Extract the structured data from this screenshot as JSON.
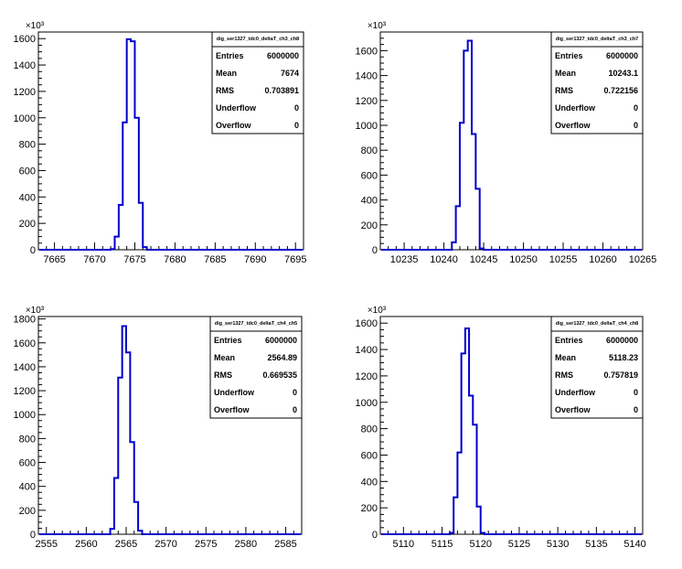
{
  "chart_data": [
    {
      "type": "histogram",
      "stats_title": "dig_ser1327_tdc0_deltaT_ch3_ch8",
      "y_multiplier": "×10³",
      "xlim": [
        7663,
        7696
      ],
      "ylim": [
        0,
        1650
      ],
      "x_ticks": [
        7665,
        7670,
        7675,
        7680,
        7685,
        7690,
        7695
      ],
      "y_ticks": [
        0,
        200,
        400,
        600,
        800,
        1000,
        1200,
        1400,
        1600
      ],
      "bin_width": 0.5,
      "bins": [
        {
          "x": 7672.0,
          "y": 5
        },
        {
          "x": 7672.5,
          "y": 100
        },
        {
          "x": 7673.0,
          "y": 340
        },
        {
          "x": 7673.5,
          "y": 965
        },
        {
          "x": 7674.0,
          "y": 1595
        },
        {
          "x": 7674.5,
          "y": 1580
        },
        {
          "x": 7675.0,
          "y": 1000
        },
        {
          "x": 7675.5,
          "y": 355
        },
        {
          "x": 7676.0,
          "y": 20
        }
      ],
      "stats": [
        {
          "label": "Entries",
          "value": "6000000"
        },
        {
          "label": "Mean",
          "value": "7674"
        },
        {
          "label": "RMS",
          "value": "0.703891"
        },
        {
          "label": "Underflow",
          "value": "0"
        },
        {
          "label": "Overflow",
          "value": "0"
        }
      ]
    },
    {
      "type": "histogram",
      "stats_title": "dig_ser1327_tdc0_deltaT_ch3_ch7",
      "y_multiplier": "×10³",
      "xlim": [
        10232,
        10265
      ],
      "ylim": [
        0,
        1750
      ],
      "x_ticks": [
        10235,
        10240,
        10245,
        10250,
        10255,
        10260,
        10265
      ],
      "y_ticks": [
        0,
        200,
        400,
        600,
        800,
        1000,
        1200,
        1400,
        1600
      ],
      "bin_width": 0.5,
      "bins": [
        {
          "x": 10241.0,
          "y": 60
        },
        {
          "x": 10241.5,
          "y": 350
        },
        {
          "x": 10242.0,
          "y": 1020
        },
        {
          "x": 10242.5,
          "y": 1600
        },
        {
          "x": 10243.0,
          "y": 1680
        },
        {
          "x": 10243.5,
          "y": 930
        },
        {
          "x": 10244.0,
          "y": 490
        },
        {
          "x": 10244.5,
          "y": 10
        }
      ],
      "stats": [
        {
          "label": "Entries",
          "value": "6000000"
        },
        {
          "label": "Mean",
          "value": "10243.1"
        },
        {
          "label": "RMS",
          "value": "0.722156"
        },
        {
          "label": "Underflow",
          "value": "0"
        },
        {
          "label": "Overflow",
          "value": "0"
        }
      ]
    },
    {
      "type": "histogram",
      "stats_title": "dig_ser1327_tdc0_deltaT_ch4_ch5",
      "y_multiplier": "×10³",
      "xlim": [
        2554,
        2587
      ],
      "ylim": [
        0,
        1820
      ],
      "x_ticks": [
        2555,
        2560,
        2565,
        2570,
        2575,
        2580,
        2585
      ],
      "y_ticks": [
        0,
        200,
        400,
        600,
        800,
        1000,
        1200,
        1400,
        1600,
        1800
      ],
      "bin_width": 0.5,
      "bins": [
        {
          "x": 2563.0,
          "y": 45
        },
        {
          "x": 2563.5,
          "y": 470
        },
        {
          "x": 2564.0,
          "y": 1310
        },
        {
          "x": 2564.5,
          "y": 1740
        },
        {
          "x": 2565.0,
          "y": 1520
        },
        {
          "x": 2565.5,
          "y": 770
        },
        {
          "x": 2566.0,
          "y": 270
        },
        {
          "x": 2566.5,
          "y": 30
        }
      ],
      "stats": [
        {
          "label": "Entries",
          "value": "6000000"
        },
        {
          "label": "Mean",
          "value": "2564.89"
        },
        {
          "label": "RMS",
          "value": "0.669535"
        },
        {
          "label": "Underflow",
          "value": "0"
        },
        {
          "label": "Overflow",
          "value": "0"
        }
      ]
    },
    {
      "type": "histogram",
      "stats_title": "dig_ser1327_tdc0_deltaT_ch4_ch8",
      "y_multiplier": "×10³",
      "xlim": [
        5107,
        5141
      ],
      "ylim": [
        0,
        1650
      ],
      "x_ticks": [
        5110,
        5115,
        5120,
        5125,
        5130,
        5135,
        5140
      ],
      "y_ticks": [
        0,
        200,
        400,
        600,
        800,
        1000,
        1200,
        1400,
        1600
      ],
      "bin_width": 0.5,
      "bins": [
        {
          "x": 5116.0,
          "y": 10
        },
        {
          "x": 5116.5,
          "y": 280
        },
        {
          "x": 5117.0,
          "y": 620
        },
        {
          "x": 5117.5,
          "y": 1370
        },
        {
          "x": 5118.0,
          "y": 1560
        },
        {
          "x": 5118.5,
          "y": 1050
        },
        {
          "x": 5119.0,
          "y": 830
        },
        {
          "x": 5119.5,
          "y": 210
        },
        {
          "x": 5120.0,
          "y": 10
        }
      ],
      "stats": [
        {
          "label": "Entries",
          "value": "6000000"
        },
        {
          "label": "Mean",
          "value": "5118.23"
        },
        {
          "label": "RMS",
          "value": "0.757819"
        },
        {
          "label": "Underflow",
          "value": "0"
        },
        {
          "label": "Overflow",
          "value": "0"
        }
      ]
    }
  ],
  "colors": {
    "histogram_line": "#0000cc",
    "axis": "#000000",
    "background": "#ffffff"
  }
}
